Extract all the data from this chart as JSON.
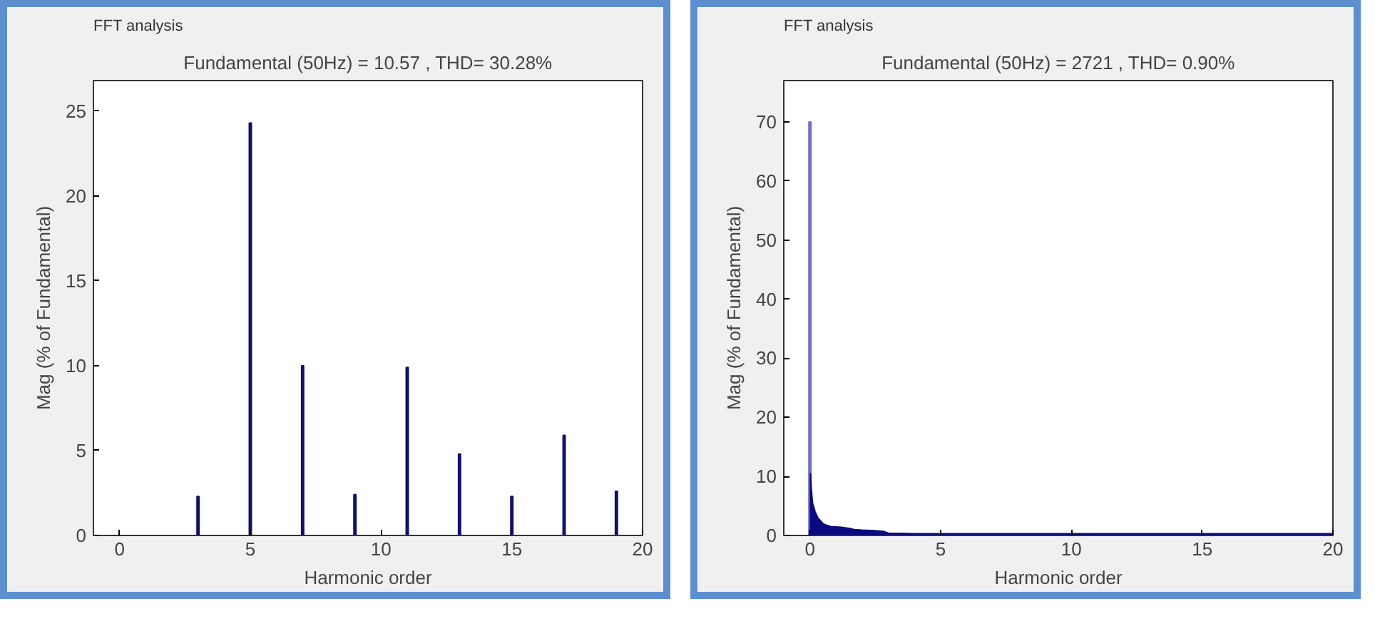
{
  "chart_data": [
    {
      "type": "bar",
      "annotations": [
        "FFT analysis"
      ],
      "title": "Fundamental (50Hz) = 10.57 , THD= 30.28%",
      "xlabel": "Harmonic order",
      "ylabel": "Mag (% of Fundamental)",
      "xlim": [
        -1,
        20
      ],
      "ylim": [
        0,
        26.8
      ],
      "xticks": [
        0,
        5,
        10,
        15,
        20
      ],
      "yticks": [
        0,
        5,
        10,
        15,
        20,
        25
      ],
      "grid": false,
      "series": [
        {
          "color": "#101070",
          "x": [
            3,
            5,
            7,
            9,
            11,
            13,
            15,
            17,
            19
          ],
          "values": [
            2.3,
            24.3,
            10,
            2.4,
            9.9,
            4.8,
            2.3,
            5.9,
            2.6
          ]
        }
      ]
    },
    {
      "type": "area",
      "annotations": [
        "FFT analysis"
      ],
      "title": "Fundamental (50Hz) = 2721 , THD= 0.90%",
      "xlabel": "Harmonic order",
      "ylabel": "Mag (% of Fundamental)",
      "xlim": [
        -1,
        20
      ],
      "ylim": [
        0,
        77
      ],
      "xticks": [
        0,
        5,
        10,
        15,
        20
      ],
      "yticks": [
        0,
        10,
        20,
        30,
        40,
        50,
        60,
        70
      ],
      "grid": false,
      "series": [
        {
          "type": "bar",
          "color": "#7070d0",
          "x": [
            0
          ],
          "values": [
            70
          ]
        },
        {
          "type": "area",
          "color": "#0a0a80",
          "x": [
            0.02,
            0.05,
            0.1,
            0.2,
            0.3,
            0.4,
            0.5,
            0.6,
            0.8,
            1.2,
            1.5,
            1.7,
            2,
            2.5,
            2.8,
            3,
            4,
            6,
            8,
            10,
            12,
            14,
            16,
            18,
            20
          ],
          "values": [
            10.5,
            8,
            5.5,
            4,
            3,
            2.5,
            2,
            1.8,
            1.5,
            1.4,
            1.2,
            1,
            0.9,
            0.8,
            0.7,
            0.4,
            0.3,
            0.3,
            0.3,
            0.3,
            0.3,
            0.3,
            0.3,
            0.3,
            0.3
          ]
        }
      ]
    }
  ]
}
